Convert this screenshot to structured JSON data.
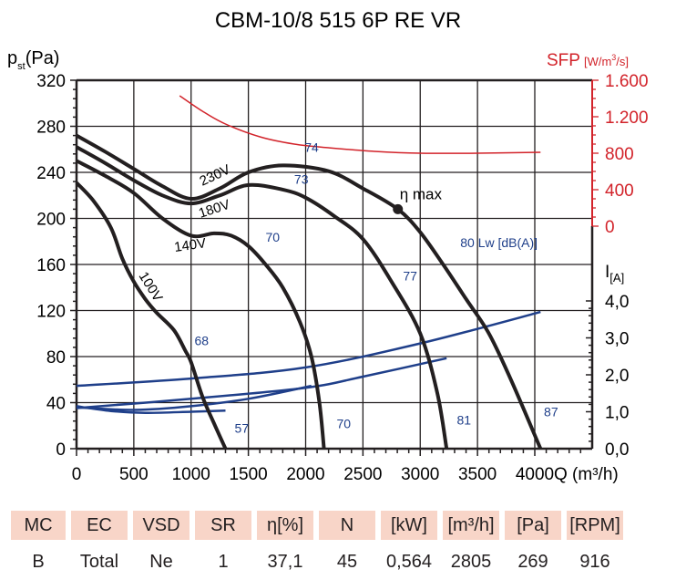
{
  "chart_data": {
    "type": "line",
    "title": "CBM-10/8 515 6P RE VR",
    "xlabel": "Q (m³/h)",
    "ylabel": "pst(Pa)",
    "xlim": [
      0,
      4500
    ],
    "ylim": [
      0,
      320
    ],
    "x_ticks": [
      0,
      500,
      1000,
      1500,
      2000,
      2500,
      3000,
      3500,
      4000
    ],
    "x_tick_labels": [
      "0",
      "500",
      "1000",
      "1500",
      "2000",
      "2500",
      "3000",
      "3500",
      "4000"
    ],
    "y_ticks": [
      0,
      40,
      80,
      120,
      160,
      200,
      240,
      280,
      320
    ],
    "y_tick_labels": [
      "0",
      "40",
      "80",
      "120",
      "160",
      "200",
      "240",
      "280",
      "320"
    ],
    "grid": true,
    "sfp_axis": {
      "label": "SFP",
      "unit": "[W/m³/s]",
      "color": "#d2232a",
      "range": [
        0,
        1600
      ],
      "ticks": [
        0,
        400,
        800,
        1200,
        1600
      ],
      "tick_labels": [
        "0",
        "400",
        "800",
        "1.200",
        "1.600"
      ]
    },
    "current_axis": {
      "label": "I",
      "unit": "[A]",
      "range": [
        0,
        4
      ],
      "ticks": [
        0,
        1,
        2,
        3,
        4
      ],
      "tick_labels": [
        "0,0",
        "1,0",
        "2,0",
        "3,0",
        "4,0"
      ]
    },
    "pressure_series": [
      {
        "name": "230V",
        "points": [
          [
            0,
            272
          ],
          [
            250,
            258
          ],
          [
            500,
            243
          ],
          [
            750,
            228
          ],
          [
            1000,
            217
          ],
          [
            1250,
            226
          ],
          [
            1500,
            240
          ],
          [
            1800,
            246
          ],
          [
            2200,
            241
          ],
          [
            2500,
            226
          ],
          [
            2805,
            208
          ],
          [
            3000,
            188
          ],
          [
            3200,
            160
          ],
          [
            3400,
            130
          ],
          [
            3600,
            100
          ],
          [
            3800,
            58
          ],
          [
            4050,
            0
          ]
        ]
      },
      {
        "name": "180V",
        "points": [
          [
            0,
            262
          ],
          [
            250,
            248
          ],
          [
            500,
            233
          ],
          [
            750,
            220
          ],
          [
            1000,
            213
          ],
          [
            1250,
            220
          ],
          [
            1500,
            229
          ],
          [
            1800,
            225
          ],
          [
            2000,
            218
          ],
          [
            2250,
            202
          ],
          [
            2500,
            182
          ],
          [
            2750,
            145
          ],
          [
            3000,
            100
          ],
          [
            3150,
            48
          ],
          [
            3230,
            0
          ]
        ]
      },
      {
        "name": "140V",
        "points": [
          [
            0,
            250
          ],
          [
            250,
            237
          ],
          [
            500,
            222
          ],
          [
            750,
            200
          ],
          [
            1000,
            185
          ],
          [
            1200,
            187
          ],
          [
            1350,
            185
          ],
          [
            1500,
            176
          ],
          [
            1650,
            160
          ],
          [
            1800,
            140
          ],
          [
            1950,
            110
          ],
          [
            2050,
            80
          ],
          [
            2120,
            40
          ],
          [
            2160,
            0
          ]
        ]
      },
      {
        "name": "100V",
        "points": [
          [
            0,
            231
          ],
          [
            150,
            215
          ],
          [
            300,
            192
          ],
          [
            400,
            165
          ],
          [
            500,
            145
          ],
          [
            600,
            130
          ],
          [
            700,
            118
          ],
          [
            850,
            103
          ],
          [
            950,
            85
          ],
          [
            1000,
            75
          ],
          [
            1100,
            45
          ],
          [
            1200,
            22
          ],
          [
            1300,
            0
          ]
        ]
      }
    ],
    "current_series": [
      {
        "name": "I 230V",
        "points": [
          [
            0,
            1.7
          ],
          [
            1000,
            1.9
          ],
          [
            2000,
            2.2
          ],
          [
            3000,
            2.85
          ],
          [
            4050,
            3.7
          ]
        ]
      },
      {
        "name": "I 180V",
        "points": [
          [
            0,
            1.1
          ],
          [
            1000,
            1.35
          ],
          [
            2000,
            1.65
          ],
          [
            2500,
            1.95
          ],
          [
            3230,
            2.45
          ]
        ]
      },
      {
        "name": "I 140V",
        "points": [
          [
            0,
            1.12
          ],
          [
            500,
            1.05
          ],
          [
            1000,
            1.15
          ],
          [
            1500,
            1.35
          ],
          [
            2050,
            1.7
          ]
        ]
      },
      {
        "name": "I 100V",
        "points": [
          [
            0,
            1.15
          ],
          [
            300,
            1.02
          ],
          [
            600,
            0.97
          ],
          [
            1000,
            1.0
          ],
          [
            1300,
            1.03
          ]
        ]
      }
    ],
    "sfp_series": {
      "name": "SFP",
      "points": [
        [
          900,
          1430
        ],
        [
          1100,
          1260
        ],
        [
          1300,
          1120
        ],
        [
          1600,
          980
        ],
        [
          1900,
          900
        ],
        [
          2200,
          860
        ],
        [
          2600,
          820
        ],
        [
          3000,
          800
        ],
        [
          3500,
          800
        ],
        [
          4050,
          810
        ]
      ]
    },
    "eta_max": {
      "label": "η max",
      "point": [
        2805,
        208
      ]
    },
    "voltage_labels": [
      "230V",
      "180V",
      "140V",
      "100V"
    ],
    "noise_labels": [
      {
        "text": "74",
        "at": [
          1990,
          258
        ]
      },
      {
        "text": "73",
        "at": [
          1900,
          230
        ]
      },
      {
        "text": "70",
        "at": [
          1650,
          180
        ]
      },
      {
        "text": "68",
        "at": [
          1030,
          90
        ]
      },
      {
        "text": "57",
        "at": [
          1380,
          14
        ]
      },
      {
        "text": "77",
        "at": [
          2850,
          146
        ]
      },
      {
        "text": "80 Lw [dB(A)]",
        "at": [
          3350,
          175
        ]
      },
      {
        "text": "70",
        "at": [
          2270,
          18
        ]
      },
      {
        "text": "81",
        "at": [
          3320,
          21
        ]
      },
      {
        "text": "87",
        "at": [
          4080,
          28
        ]
      }
    ]
  },
  "spec_table": {
    "headers": [
      "MC",
      "EC",
      "VSD",
      "SR",
      "η[%]",
      "N",
      "[kW]",
      "[m³/h]",
      "[Pa]",
      "[RPM]"
    ],
    "values": [
      "B",
      "Total",
      "Ne",
      "1",
      "37,1",
      "45",
      "0,564",
      "2805",
      "269",
      "916"
    ]
  }
}
